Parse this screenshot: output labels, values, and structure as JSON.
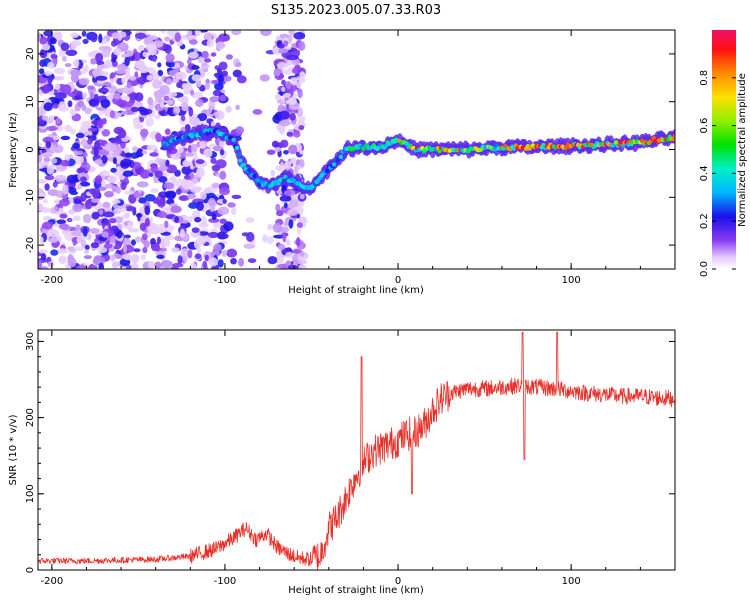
{
  "title": "S135.2023.005.07.33.R03",
  "chart_data": [
    {
      "type": "heatmap",
      "title": "S135.2023.005.07.33.R03",
      "xlabel": "Height of straight line (km)",
      "ylabel": "Frequency (Hz)",
      "xlim": [
        -208,
        160
      ],
      "ylim": [
        -25,
        25
      ],
      "xticks": [
        -200,
        -100,
        0,
        100
      ],
      "yticks": [
        -20,
        -10,
        0,
        10,
        20
      ],
      "colorbar": {
        "label": "Normalized spectral amplitude",
        "range": [
          0,
          1
        ],
        "ticks": [
          0.0,
          0.2,
          0.4,
          0.6,
          0.8
        ]
      },
      "ridge": {
        "x": [
          -135,
          -120,
          -105,
          -95,
          -90,
          -85,
          -80,
          -75,
          -70,
          -65,
          -60,
          -55,
          -50,
          -45,
          -40,
          -35,
          -30,
          -20,
          -10,
          0,
          10,
          20,
          40,
          60,
          80,
          100,
          120,
          140,
          160
        ],
        "freq": [
          1,
          3,
          4,
          2,
          -3,
          -5,
          -7,
          -7.5,
          -7,
          -6,
          -6.5,
          -7.5,
          -8,
          -6,
          -4,
          -2,
          0,
          0.5,
          0.5,
          2,
          0,
          0,
          0,
          0.5,
          0.5,
          0.8,
          1,
          1.5,
          2.5
        ]
      }
    },
    {
      "type": "line",
      "xlabel": "Height of straight line (km)",
      "ylabel": "SNR (10 * v/v)",
      "xlim": [
        -208,
        160
      ],
      "ylim": [
        0,
        315
      ],
      "xticks": [
        -200,
        -100,
        0,
        100
      ],
      "yticks": [
        0,
        100,
        200,
        300
      ],
      "color": "#e8302a",
      "series": [
        {
          "name": "SNR",
          "x": [
            -208,
            -180,
            -160,
            -140,
            -120,
            -105,
            -95,
            -88,
            -82,
            -76,
            -70,
            -64,
            -58,
            -50,
            -45,
            -40,
            -35,
            -30,
            -25,
            -20,
            -15,
            -10,
            -5,
            0,
            5,
            10,
            15,
            20,
            25,
            30,
            40,
            50,
            60,
            70,
            80,
            90,
            100,
            110,
            120,
            130,
            140,
            150,
            160
          ],
          "y": [
            12,
            12,
            13,
            14,
            18,
            28,
            42,
            55,
            40,
            48,
            30,
            22,
            16,
            14,
            18,
            55,
            70,
            95,
            120,
            140,
            155,
            160,
            165,
            170,
            178,
            180,
            190,
            210,
            225,
            232,
            238,
            238,
            240,
            242,
            240,
            238,
            235,
            232,
            230,
            228,
            228,
            226,
            225
          ]
        }
      ],
      "spikes": [
        {
          "x": -21,
          "y": 280
        },
        {
          "x": 72,
          "y": 312
        },
        {
          "x": 92,
          "y": 312
        },
        {
          "x": 73,
          "y": 145
        },
        {
          "x": 8,
          "y": 100
        }
      ]
    }
  ]
}
